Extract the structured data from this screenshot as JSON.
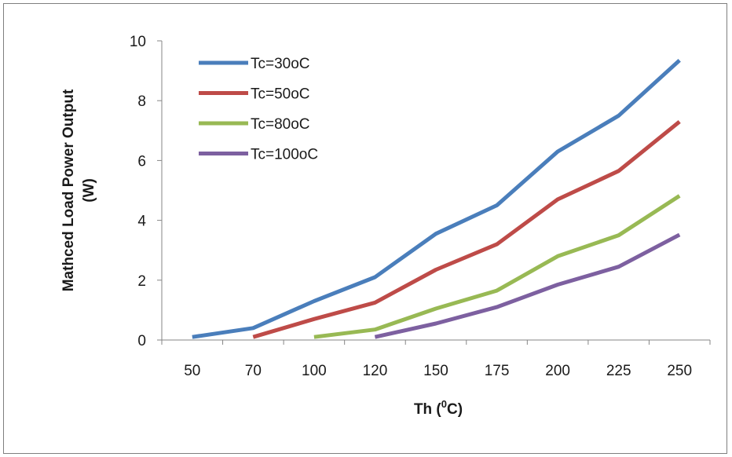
{
  "chart_data": {
    "type": "line",
    "categories": [
      "50",
      "70",
      "100",
      "120",
      "150",
      "175",
      "200",
      "225",
      "250"
    ],
    "series": [
      {
        "name": "Tc=30oC",
        "color": "#4a7ebb",
        "values": [
          0.1,
          0.4,
          1.3,
          2.1,
          3.55,
          4.5,
          6.3,
          7.5,
          9.35
        ]
      },
      {
        "name": "Tc=50oC",
        "color": "#be4b48",
        "values": [
          null,
          0.1,
          0.7,
          1.25,
          2.35,
          3.2,
          4.7,
          5.65,
          7.3
        ]
      },
      {
        "name": "Tc=80oC",
        "color": "#98b954",
        "values": [
          null,
          null,
          0.1,
          0.35,
          1.05,
          1.65,
          2.8,
          3.5,
          4.82
        ]
      },
      {
        "name": "Tc=100oC",
        "color": "#7d60a0",
        "values": [
          null,
          null,
          null,
          0.1,
          0.55,
          1.1,
          1.85,
          2.45,
          3.52
        ]
      }
    ],
    "xlabel": "Th (0C)",
    "xlabel_main": "Th (",
    "xlabel_sup": "0",
    "xlabel_end": "C)",
    "ylabel_line1": "Mathced Load Power Output",
    "ylabel_line2": "(W)",
    "ylim": [
      0,
      10
    ],
    "yticks": [
      "0",
      "2",
      "4",
      "6",
      "8",
      "10"
    ],
    "grid": false,
    "legend_position": "top-left"
  }
}
